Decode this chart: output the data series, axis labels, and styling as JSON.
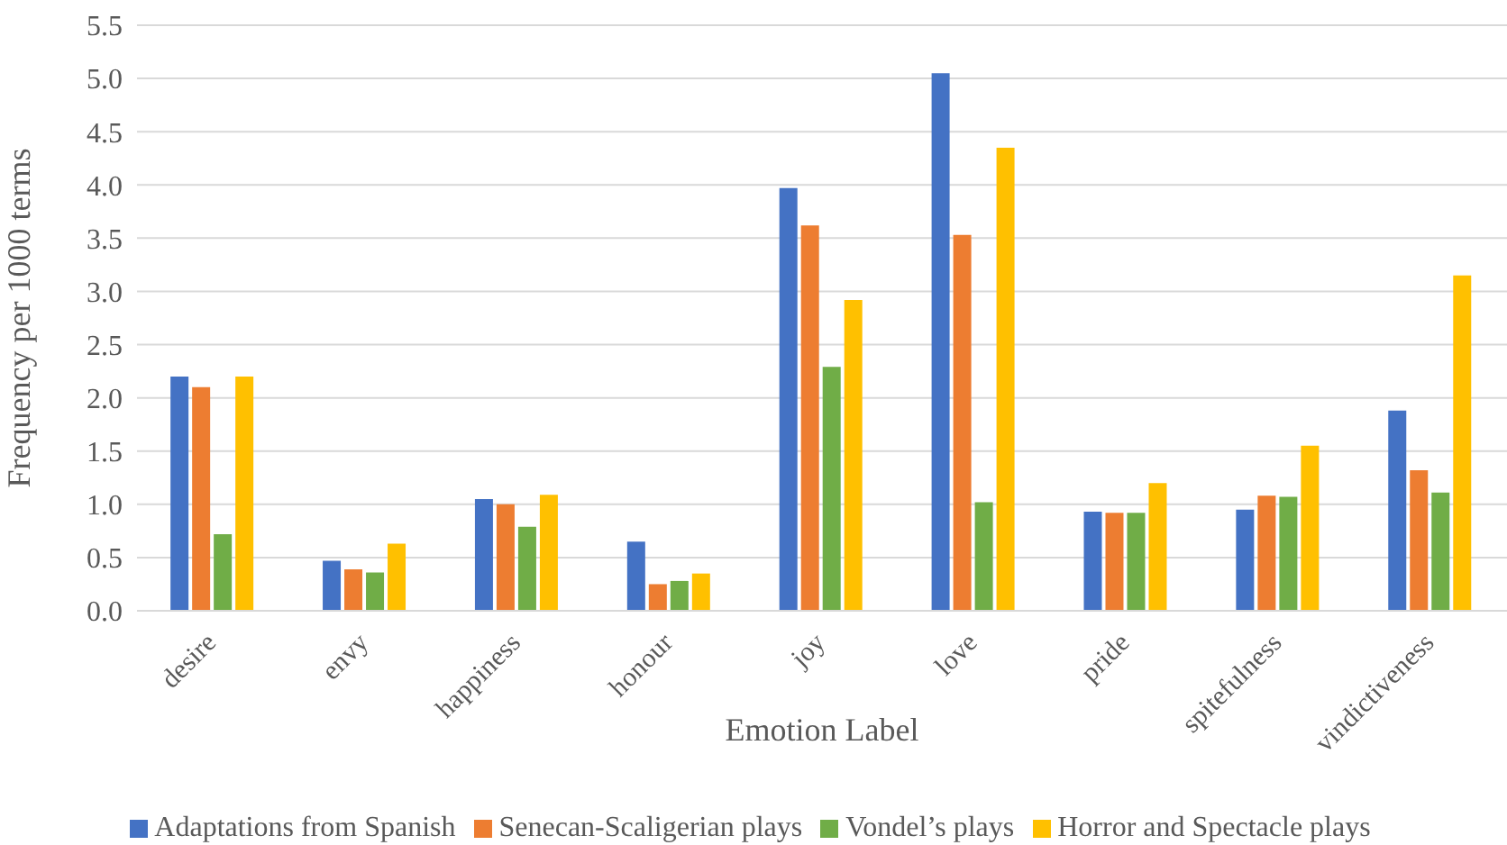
{
  "chart_data": {
    "type": "bar",
    "xlabel": "Emotion Label",
    "ylabel": "Frequency per 1000 terms",
    "categories": [
      "desire",
      "envy",
      "happiness",
      "honour",
      "joy",
      "love",
      "pride",
      "spitefulness",
      "vindictiveness"
    ],
    "series": [
      {
        "name": "Adaptations from Spanish",
        "color": "#4472c4",
        "values": [
          2.2,
          0.47,
          1.05,
          0.65,
          3.97,
          5.05,
          0.93,
          0.95,
          1.88
        ]
      },
      {
        "name": "Senecan-Scaligerian plays",
        "color": "#ed7d31",
        "values": [
          2.1,
          0.39,
          1.0,
          0.25,
          3.62,
          3.53,
          0.92,
          1.08,
          1.32
        ]
      },
      {
        "name": "Vondel’s plays",
        "color": "#70ad47",
        "values": [
          0.72,
          0.36,
          0.79,
          0.28,
          2.29,
          1.02,
          0.92,
          1.07,
          1.11
        ]
      },
      {
        "name": "Horror and Spectacle plays",
        "color": "#ffc000",
        "values": [
          2.2,
          0.63,
          1.09,
          0.35,
          2.92,
          4.35,
          1.2,
          1.55,
          3.15
        ]
      }
    ],
    "ylim": [
      0,
      5.5
    ],
    "yticks": [
      {
        "value": 0,
        "label": "0.0"
      },
      0.5,
      {
        "value": 1,
        "label": "1.0"
      },
      1.5,
      {
        "value": 2,
        "label": "2.0"
      },
      2.5,
      {
        "value": 3,
        "label": "3.0"
      },
      3.5,
      {
        "value": 4,
        "label": "4.0"
      },
      4.5,
      {
        "value": 5,
        "label": "5.0"
      },
      5.5
    ],
    "grid": "y",
    "legend": "bottom"
  }
}
